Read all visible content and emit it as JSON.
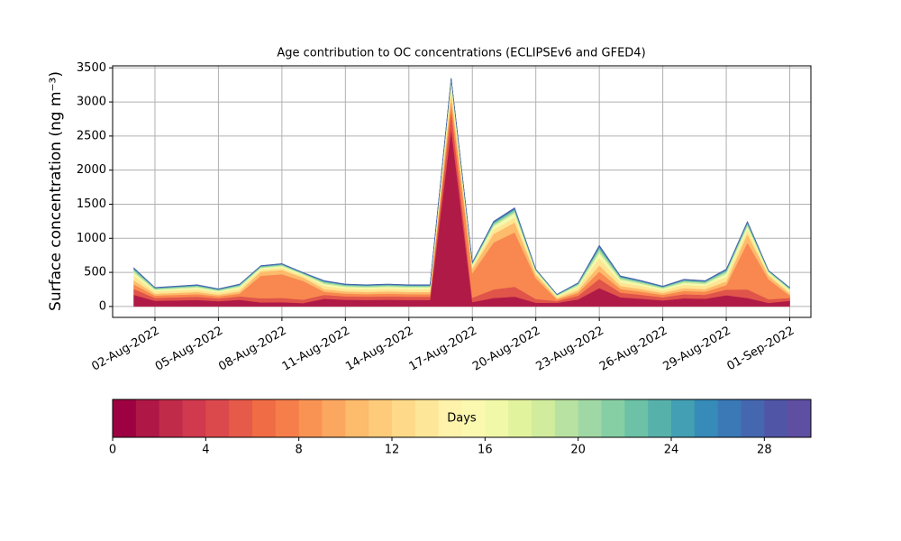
{
  "chart_data": {
    "type": "stackedarea",
    "title": "Age contribution to OC concentrations (ECLIPSEv6 and GFED4)",
    "ylabel": "Surface concentration (ng m⁻³)",
    "x": [
      "2022-08-01",
      "2022-08-02",
      "2022-08-03",
      "2022-08-04",
      "2022-08-05",
      "2022-08-06",
      "2022-08-07",
      "2022-08-08",
      "2022-08-09",
      "2022-08-10",
      "2022-08-11",
      "2022-08-12",
      "2022-08-13",
      "2022-08-14",
      "2022-08-15",
      "2022-08-16",
      "2022-08-17",
      "2022-08-18",
      "2022-08-19",
      "2022-08-20",
      "2022-08-21",
      "2022-08-22",
      "2022-08-23",
      "2022-08-24",
      "2022-08-25",
      "2022-08-26",
      "2022-08-27",
      "2022-08-28",
      "2022-08-29",
      "2022-08-30",
      "2022-08-31",
      "2022-09-01"
    ],
    "xlim": [
      "2022-07-31",
      "2022-09-02"
    ],
    "xticks": [
      {
        "value": "2022-08-02",
        "label": "02-Aug-2022"
      },
      {
        "value": "2022-08-05",
        "label": "05-Aug-2022"
      },
      {
        "value": "2022-08-08",
        "label": "08-Aug-2022"
      },
      {
        "value": "2022-08-11",
        "label": "11-Aug-2022"
      },
      {
        "value": "2022-08-14",
        "label": "14-Aug-2022"
      },
      {
        "value": "2022-08-17",
        "label": "17-Aug-2022"
      },
      {
        "value": "2022-08-20",
        "label": "20-Aug-2022"
      },
      {
        "value": "2022-08-23",
        "label": "23-Aug-2022"
      },
      {
        "value": "2022-08-26",
        "label": "26-Aug-2022"
      },
      {
        "value": "2022-08-29",
        "label": "29-Aug-2022"
      },
      {
        "value": "2022-09-01",
        "label": "01-Sep-2022"
      }
    ],
    "ylim": [
      -160,
      3530
    ],
    "yticks": [
      0,
      500,
      1000,
      1500,
      2000,
      2500,
      3000,
      3500
    ],
    "grid": true,
    "series": [
      {
        "color": "#b01a47",
        "values": [
          171,
          84,
          90,
          96,
          78,
          99,
          60,
          63,
          50,
          114,
          99,
          96,
          99,
          96,
          96,
          2613,
          65,
          125,
          145,
          55,
          54,
          105,
          270,
          135,
          114,
          90,
          120,
          114,
          165,
          125,
          53,
          84
        ]
      },
      {
        "color": "#e0544a",
        "values": [
          86,
          42,
          45,
          48,
          39,
          50,
          60,
          63,
          50,
          57,
          50,
          48,
          50,
          48,
          48,
          268,
          65,
          125,
          145,
          55,
          27,
          53,
          135,
          68,
          57,
          45,
          60,
          57,
          83,
          125,
          53,
          42
        ]
      },
      {
        "color": "#f8884f",
        "values": [
          68,
          34,
          36,
          38,
          31,
          40,
          330,
          347,
          275,
          46,
          40,
          38,
          40,
          38,
          38,
          134,
          358,
          688,
          798,
          303,
          22,
          42,
          108,
          54,
          46,
          36,
          48,
          46,
          66,
          688,
          292,
          34
        ]
      },
      {
        "color": "#fdbb6c",
        "values": [
          57,
          28,
          30,
          32,
          26,
          33,
          60,
          63,
          50,
          38,
          33,
          32,
          33,
          32,
          32,
          101,
          65,
          125,
          145,
          55,
          18,
          35,
          90,
          45,
          38,
          30,
          40,
          38,
          55,
          125,
          53,
          28
        ]
      },
      {
        "color": "#fee593",
        "values": [
          68,
          34,
          36,
          38,
          31,
          40,
          30,
          32,
          25,
          46,
          40,
          38,
          40,
          38,
          38,
          101,
          33,
          63,
          73,
          28,
          22,
          42,
          108,
          54,
          46,
          36,
          48,
          46,
          66,
          63,
          27,
          34
        ]
      },
      {
        "color": "#f3faad",
        "values": [
          46,
          22,
          24,
          26,
          21,
          26,
          24,
          25,
          20,
          30,
          26,
          26,
          26,
          26,
          26,
          67,
          26,
          50,
          58,
          22,
          14,
          28,
          72,
          36,
          30,
          24,
          32,
          30,
          44,
          50,
          21,
          22
        ]
      },
      {
        "color": "#c4e7a0",
        "values": [
          29,
          14,
          15,
          16,
          13,
          16,
          12,
          13,
          10,
          19,
          16,
          16,
          16,
          16,
          16,
          34,
          13,
          25,
          29,
          11,
          9,
          18,
          45,
          23,
          19,
          15,
          20,
          19,
          28,
          25,
          11,
          14
        ]
      },
      {
        "color": "#7ccaa5",
        "values": [
          23,
          11,
          12,
          13,
          10,
          13,
          12,
          12,
          10,
          15,
          13,
          13,
          13,
          13,
          13,
          32,
          13,
          25,
          29,
          11,
          7,
          14,
          36,
          18,
          15,
          12,
          16,
          15,
          22,
          25,
          11,
          11
        ]
      },
      {
        "color": "#3d8db8",
        "values": [
          11,
          6,
          6,
          7,
          6,
          7,
          6,
          6,
          5,
          8,
          7,
          7,
          7,
          7,
          7,
          0,
          6,
          12,
          14,
          5,
          4,
          7,
          18,
          9,
          8,
          6,
          8,
          8,
          11,
          12,
          5,
          6
        ]
      },
      {
        "color": "#4a5ea9",
        "values": [
          11,
          5,
          6,
          6,
          5,
          6,
          6,
          6,
          5,
          7,
          6,
          6,
          6,
          6,
          6,
          0,
          6,
          12,
          14,
          5,
          3,
          6,
          18,
          8,
          7,
          6,
          8,
          7,
          10,
          12,
          5,
          5
        ]
      }
    ],
    "colorbar": {
      "label": "Days",
      "lim": [
        0,
        30
      ],
      "ticks": [
        0,
        4,
        8,
        12,
        16,
        20,
        24,
        28
      ],
      "colors": [
        "#9e0142",
        "#af1746",
        "#c02b4a",
        "#d0394e",
        "#dc494c",
        "#e65a4a",
        "#f06c45",
        "#f57e4b",
        "#f99354",
        "#fba760",
        "#fdbb6c",
        "#fdcb7a",
        "#fed989",
        "#fee698",
        "#fff2aa",
        "#fbf8b0",
        "#f1f9a9",
        "#e2f39d",
        "#d0ec9c",
        "#b8e2a1",
        "#9fd8a4",
        "#86cfa5",
        "#6cc1a6",
        "#57b1ab",
        "#439fb3",
        "#368bb9",
        "#3a79b6",
        "#4567b0",
        "#5155a6",
        "#5e4fa2"
      ]
    }
  }
}
